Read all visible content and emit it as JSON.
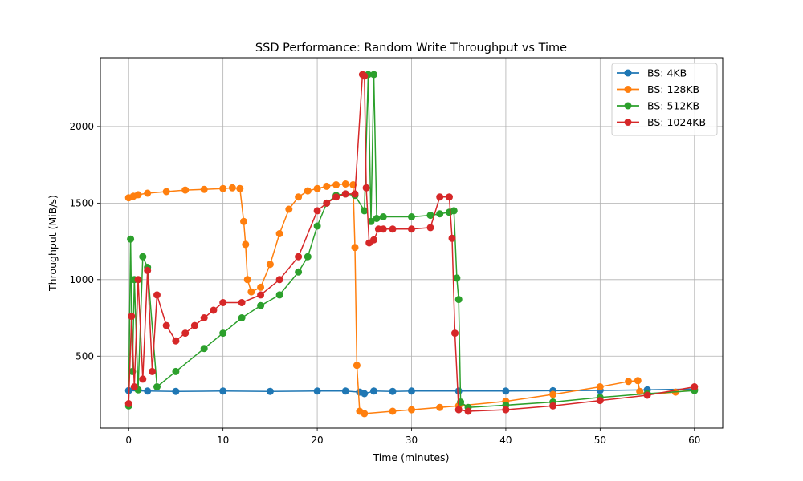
{
  "chart_data": {
    "type": "line",
    "title": "SSD Performance: Random Write Throughput vs Time",
    "xlabel": "Time (minutes)",
    "ylabel": "Throughput (MiB/s)",
    "xlim": [
      -3,
      63
    ],
    "ylim": [
      30,
      2450
    ],
    "xticks": [
      0,
      10,
      20,
      30,
      40,
      50,
      60
    ],
    "yticks": [
      500,
      1000,
      1500,
      2000
    ],
    "grid": true,
    "legend_position": "top-right",
    "series": [
      {
        "name": "BS: 4KB",
        "color": "#1f77b4",
        "x": [
          0,
          2,
          5,
          10,
          15,
          20,
          23,
          24.5,
          25,
          26,
          28,
          30,
          35,
          40,
          45,
          50,
          55,
          60
        ],
        "y": [
          275,
          272,
          270,
          272,
          270,
          272,
          272,
          265,
          255,
          272,
          270,
          272,
          272,
          272,
          274,
          276,
          280,
          285
        ]
      },
      {
        "name": "BS: 128KB",
        "color": "#ff7f0e",
        "x": [
          0,
          0.5,
          1,
          2,
          4,
          6,
          8,
          10,
          11,
          11.8,
          12.2,
          12.4,
          12.6,
          13,
          14,
          15,
          16,
          17,
          18,
          19,
          20,
          21,
          22,
          23,
          23.8,
          24,
          24.2,
          24.5,
          25,
          28,
          30,
          33,
          35,
          40,
          45,
          50,
          53,
          54,
          54.2,
          55,
          58,
          60
        ],
        "y": [
          1535,
          1545,
          1555,
          1565,
          1575,
          1585,
          1590,
          1595,
          1600,
          1595,
          1380,
          1230,
          1000,
          920,
          950,
          1100,
          1300,
          1460,
          1540,
          1580,
          1595,
          1610,
          1620,
          1625,
          1620,
          1210,
          440,
          140,
          125,
          140,
          150,
          165,
          175,
          205,
          250,
          300,
          335,
          340,
          270,
          250,
          265,
          280
        ]
      },
      {
        "name": "BS: 512KB",
        "color": "#2ca02c",
        "x": [
          0,
          0.2,
          0.4,
          0.6,
          1,
          1.5,
          2,
          3,
          5,
          8,
          10,
          12,
          14,
          16,
          18,
          19,
          20,
          21,
          22,
          23,
          24,
          25,
          25.4,
          25.7,
          26,
          26.3,
          27,
          30,
          32,
          33,
          34,
          34.5,
          34.8,
          35,
          35.2,
          36,
          40,
          45,
          50,
          55,
          60
        ],
        "y": [
          175,
          1265,
          400,
          1000,
          280,
          1150,
          1080,
          300,
          400,
          550,
          650,
          750,
          830,
          900,
          1050,
          1150,
          1350,
          1500,
          1550,
          1560,
          1550,
          1450,
          2340,
          1380,
          2340,
          1400,
          1410,
          1410,
          1420,
          1430,
          1440,
          1450,
          1010,
          870,
          200,
          165,
          180,
          200,
          230,
          255,
          275
        ]
      },
      {
        "name": "BS: 1024KB",
        "color": "#d62728",
        "x": [
          0,
          0.3,
          0.6,
          1,
          1.5,
          2,
          2.5,
          3,
          4,
          5,
          6,
          7,
          8,
          9,
          10,
          12,
          14,
          16,
          18,
          20,
          21,
          22,
          23,
          24,
          24.8,
          25,
          25.2,
          25.5,
          26,
          26.5,
          27,
          28,
          30,
          32,
          33,
          34,
          34.3,
          34.6,
          35,
          36,
          40,
          45,
          50,
          55,
          60
        ],
        "y": [
          190,
          760,
          300,
          1000,
          350,
          1060,
          400,
          900,
          700,
          600,
          650,
          700,
          750,
          800,
          850,
          850,
          900,
          1000,
          1150,
          1450,
          1500,
          1540,
          1560,
          1560,
          2340,
          2330,
          1600,
          1240,
          1260,
          1330,
          1330,
          1330,
          1330,
          1340,
          1540,
          1540,
          1270,
          650,
          150,
          140,
          150,
          175,
          210,
          245,
          300
        ]
      }
    ]
  }
}
